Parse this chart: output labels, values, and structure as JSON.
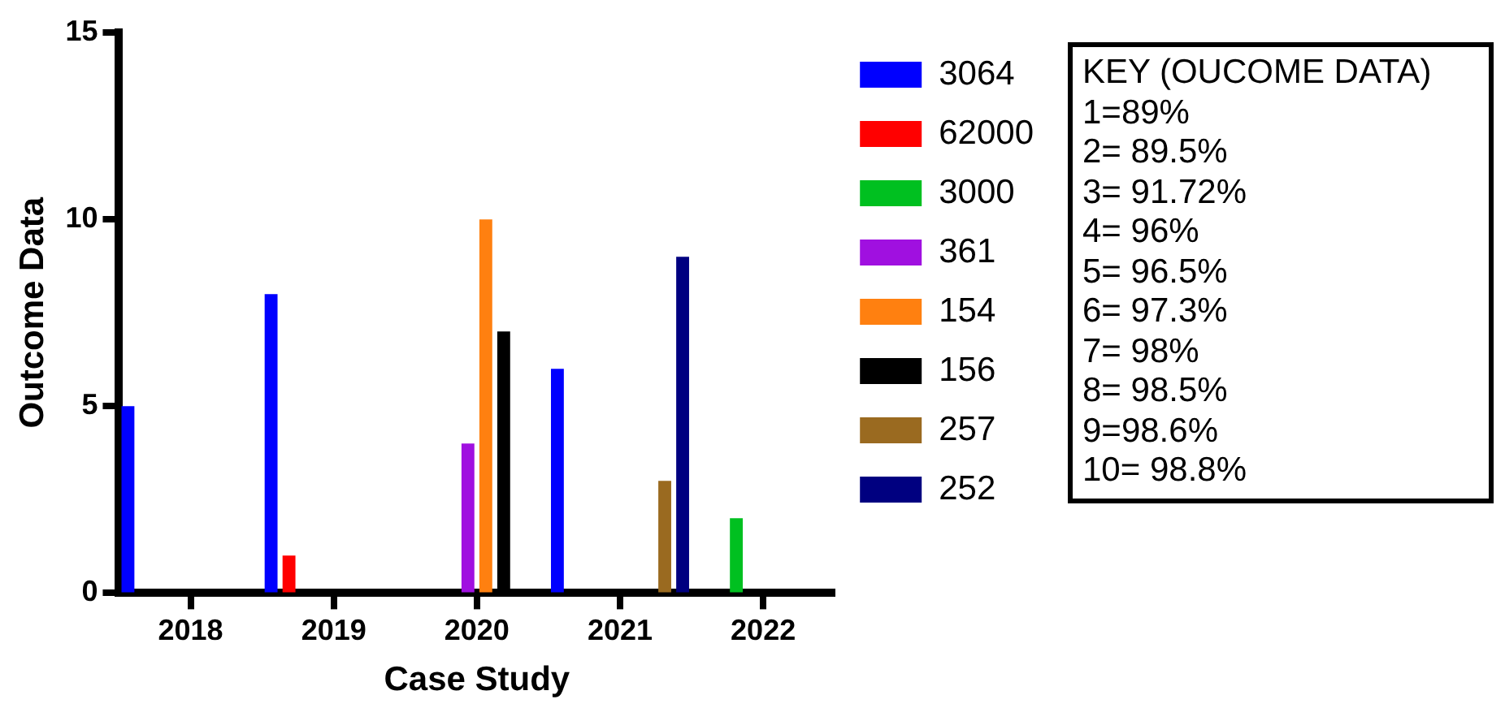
{
  "chart_data": {
    "type": "bar",
    "xlabel": "Case Study",
    "ylabel": "Outcome Data",
    "categories": [
      "2018",
      "2019",
      "2020",
      "2021",
      "2022"
    ],
    "series": [
      {
        "name": "3064",
        "color": "#0000ff",
        "values": [
          5,
          8,
          null,
          6,
          null
        ]
      },
      {
        "name": "62000",
        "color": "#ff0000",
        "values": [
          null,
          1,
          null,
          null,
          null
        ]
      },
      {
        "name": "3000",
        "color": "#00c020",
        "values": [
          null,
          null,
          null,
          null,
          2
        ]
      },
      {
        "name": "361",
        "color": "#a010e0",
        "values": [
          null,
          null,
          4,
          null,
          null
        ]
      },
      {
        "name": "154",
        "color": "#ff8010",
        "values": [
          null,
          null,
          10,
          null,
          null
        ]
      },
      {
        "name": "156",
        "color": "#000000",
        "values": [
          null,
          null,
          7,
          null,
          null
        ]
      },
      {
        "name": "257",
        "color": "#9a6a20",
        "values": [
          null,
          null,
          null,
          3,
          null
        ]
      },
      {
        "name": "252",
        "color": "#000080",
        "values": [
          null,
          null,
          null,
          9,
          null
        ]
      }
    ],
    "ylim": [
      0,
      15
    ],
    "yticks": [
      0,
      5,
      10,
      15
    ],
    "grid": false,
    "legend": "right",
    "annotations": [
      "KEY (OUCOME DATA)",
      "1=89%",
      "2= 89.5%",
      "3= 91.72%",
      "4= 96%",
      "5= 96.5%",
      "6= 97.3%",
      "7= 98%",
      "8= 98.5%",
      "9=98.6%",
      "10= 98.8%"
    ]
  }
}
